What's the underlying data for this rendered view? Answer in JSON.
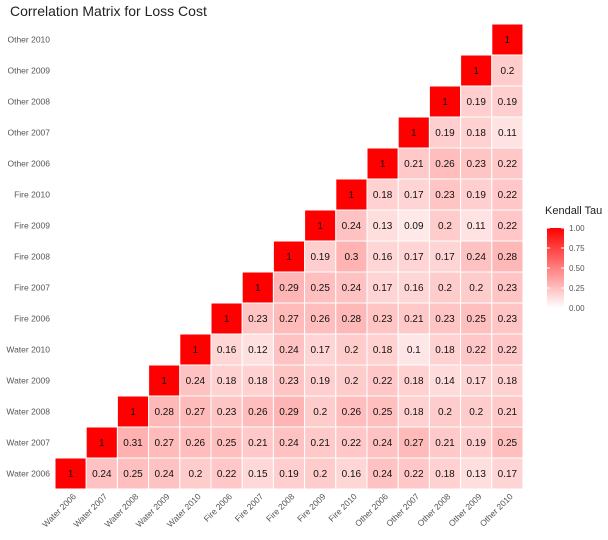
{
  "chart_data": {
    "type": "heatmap",
    "title": "Correlation Matrix for Loss Cost",
    "variables": [
      "Water 2006",
      "Water 2007",
      "Water 2008",
      "Water 2009",
      "Water 2010",
      "Fire 2006",
      "Fire 2007",
      "Fire 2008",
      "Fire 2009",
      "Fire 2010",
      "Other 2006",
      "Other 2007",
      "Other 2008",
      "Other 2009",
      "Other 2010"
    ],
    "x_tick_labels": [
      "Water 2006",
      "Water 2007",
      "Water 2008",
      "Water 2009",
      "Water 2010",
      "Fire 2006",
      "Fire 2007",
      "Fire 2008",
      "Fire 2009",
      "Fire 2010",
      "Other 2006",
      "Other 2007",
      "Other 2008",
      "Other 2009",
      "Other 2010"
    ],
    "y_tick_labels": [
      "Water 2006",
      "Water 2007",
      "Water 2008",
      "Water 2009",
      "Water 2010",
      "Fire 2006",
      "Fire 2007",
      "Fire 2008",
      "Fire 2009",
      "Fire 2010",
      "Other 2006",
      "Other 2007",
      "Other 2008",
      "Other 2009",
      "Other 2010"
    ],
    "rows": [
      {
        "row": "Water 2006",
        "cols": [
          "Water 2006",
          "Water 2007",
          "Water 2008",
          "Water 2009",
          "Water 2010",
          "Fire 2006",
          "Fire 2007",
          "Fire 2008",
          "Fire 2009",
          "Fire 2010",
          "Other 2006",
          "Other 2007",
          "Other 2008",
          "Other 2009",
          "Other 2010"
        ],
        "values": [
          1,
          0.24,
          0.25,
          0.24,
          0.2,
          0.22,
          0.15,
          0.19,
          0.2,
          0.16,
          0.24,
          0.22,
          0.18,
          0.13,
          0.17
        ]
      },
      {
        "row": "Water 2007",
        "cols": [
          "Water 2007",
          "Water 2008",
          "Water 2009",
          "Water 2010",
          "Fire 2006",
          "Fire 2007",
          "Fire 2008",
          "Fire 2009",
          "Fire 2010",
          "Other 2006",
          "Other 2007",
          "Other 2008",
          "Other 2009",
          "Other 2010"
        ],
        "values": [
          1,
          0.31,
          0.27,
          0.26,
          0.25,
          0.21,
          0.24,
          0.21,
          0.22,
          0.24,
          0.27,
          0.21,
          0.19,
          0.25
        ]
      },
      {
        "row": "Water 2008",
        "cols": [
          "Water 2008",
          "Water 2009",
          "Water 2010",
          "Fire 2006",
          "Fire 2007",
          "Fire 2008",
          "Fire 2009",
          "Fire 2010",
          "Other 2006",
          "Other 2007",
          "Other 2008",
          "Other 2009",
          "Other 2010"
        ],
        "values": [
          1,
          0.28,
          0.27,
          0.23,
          0.26,
          0.29,
          0.2,
          0.26,
          0.25,
          0.18,
          0.2,
          0.2,
          0.21
        ]
      },
      {
        "row": "Water 2009",
        "cols": [
          "Water 2009",
          "Water 2010",
          "Fire 2006",
          "Fire 2007",
          "Fire 2008",
          "Fire 2009",
          "Fire 2010",
          "Other 2006",
          "Other 2007",
          "Other 2008",
          "Other 2009",
          "Other 2010"
        ],
        "values": [
          1,
          0.24,
          0.18,
          0.18,
          0.23,
          0.19,
          0.2,
          0.22,
          0.18,
          0.14,
          0.17,
          0.18
        ]
      },
      {
        "row": "Water 2010",
        "cols": [
          "Water 2010",
          "Fire 2006",
          "Fire 2007",
          "Fire 2008",
          "Fire 2009",
          "Fire 2010",
          "Other 2006",
          "Other 2007",
          "Other 2008",
          "Other 2009",
          "Other 2010"
        ],
        "values": [
          1,
          0.16,
          0.12,
          0.24,
          0.17,
          0.2,
          0.18,
          0.1,
          0.18,
          0.22,
          0.22
        ]
      },
      {
        "row": "Fire 2006",
        "cols": [
          "Fire 2006",
          "Fire 2007",
          "Fire 2008",
          "Fire 2009",
          "Fire 2010",
          "Other 2006",
          "Other 2007",
          "Other 2008",
          "Other 2009",
          "Other 2010"
        ],
        "values": [
          1,
          0.23,
          0.27,
          0.26,
          0.28,
          0.23,
          0.21,
          0.23,
          0.25,
          0.23
        ]
      },
      {
        "row": "Fire 2007",
        "cols": [
          "Fire 2007",
          "Fire 2008",
          "Fire 2009",
          "Fire 2010",
          "Other 2006",
          "Other 2007",
          "Other 2008",
          "Other 2009",
          "Other 2010"
        ],
        "values": [
          1,
          0.29,
          0.25,
          0.24,
          0.17,
          0.16,
          0.2,
          0.2,
          0.23
        ]
      },
      {
        "row": "Fire 2008",
        "cols": [
          "Fire 2008",
          "Fire 2009",
          "Fire 2010",
          "Other 2006",
          "Other 2007",
          "Other 2008",
          "Other 2009",
          "Other 2010"
        ],
        "values": [
          1,
          0.19,
          0.3,
          0.16,
          0.17,
          0.17,
          0.24,
          0.28
        ]
      },
      {
        "row": "Fire 2009",
        "cols": [
          "Fire 2009",
          "Fire 2010",
          "Other 2006",
          "Other 2007",
          "Other 2008",
          "Other 2009",
          "Other 2010"
        ],
        "values": [
          1,
          0.24,
          0.13,
          0.09,
          0.2,
          0.11,
          0.22
        ]
      },
      {
        "row": "Fire 2010",
        "cols": [
          "Fire 2010",
          "Other 2006",
          "Other 2007",
          "Other 2008",
          "Other 2009",
          "Other 2010"
        ],
        "values": [
          1,
          0.18,
          0.17,
          0.23,
          0.19,
          0.22
        ]
      },
      {
        "row": "Other 2006",
        "cols": [
          "Other 2006",
          "Other 2007",
          "Other 2008",
          "Other 2009",
          "Other 2010"
        ],
        "values": [
          1,
          0.21,
          0.26,
          0.23,
          0.22
        ]
      },
      {
        "row": "Other 2007",
        "cols": [
          "Other 2007",
          "Other 2008",
          "Other 2009",
          "Other 2010"
        ],
        "values": [
          1,
          0.19,
          0.18,
          0.11
        ]
      },
      {
        "row": "Other 2008",
        "cols": [
          "Other 2008",
          "Other 2009",
          "Other 2010"
        ],
        "values": [
          1,
          0.19,
          0.19
        ]
      },
      {
        "row": "Other 2009",
        "cols": [
          "Other 2009",
          "Other 2010"
        ],
        "values": [
          1,
          0.2
        ]
      },
      {
        "row": "Other 2010",
        "cols": [
          "Other 2010"
        ],
        "values": [
          1
        ]
      }
    ],
    "legend": {
      "title": "Kendall Tau",
      "ticks": [
        "1.00",
        "0.75",
        "0.50",
        "0.25",
        "0.00"
      ],
      "range": [
        0,
        1
      ],
      "low_color": "#ffffff",
      "high_color": "#ff0000",
      "position": "right"
    },
    "grid": false
  }
}
